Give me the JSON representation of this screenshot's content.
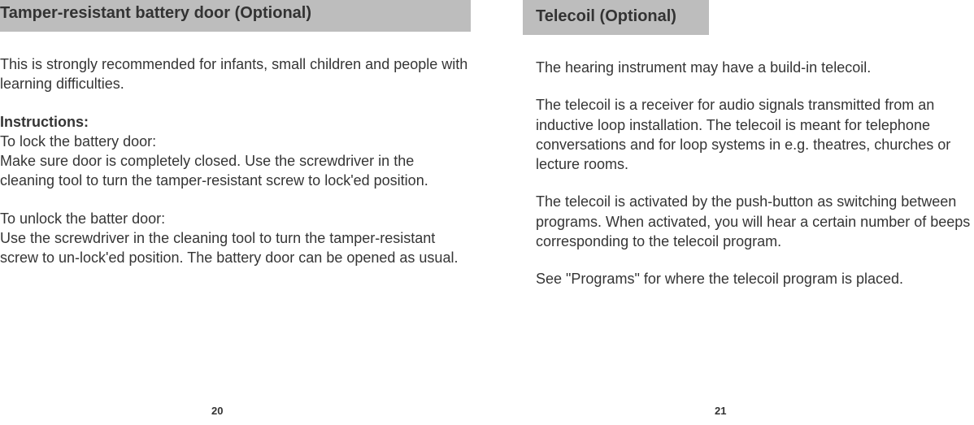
{
  "left": {
    "heading": "Tamper-resistant battery door (Optional)",
    "intro": "This is strongly recommended for infants, small children and people with learning difficulties.",
    "instructions_label": "Instructions:",
    "lock_label": "To lock the battery door:",
    "lock_text": "Make sure door is completely closed. Use the screwdriver in the cleaning tool to turn the tamper-resistant screw to lock'ed position.",
    "unlock_label": "To unlock the batter door:",
    "unlock_text": "Use the screwdriver in the cleaning tool to turn the tamper-resistant screw to un-lock'ed position. The battery door can be opened as usual.",
    "pagenum": "20"
  },
  "right": {
    "heading": "Telecoil (Optional)",
    "p1": "The hearing instrument may have a build-in telecoil.",
    "p2": "The telecoil is a receiver for audio signals transmitted from an inductive loop installation. The telecoil is meant for telephone conversations and for loop systems in e.g. theatres, churches or lecture rooms.",
    "p3": "The telecoil is activated by the push-button as switching between programs. When activated, you will hear a certain number of beeps corresponding to the telecoil program.",
    "p4": "See \"Programs\" for where the telecoil program is placed.",
    "pagenum": "21"
  }
}
